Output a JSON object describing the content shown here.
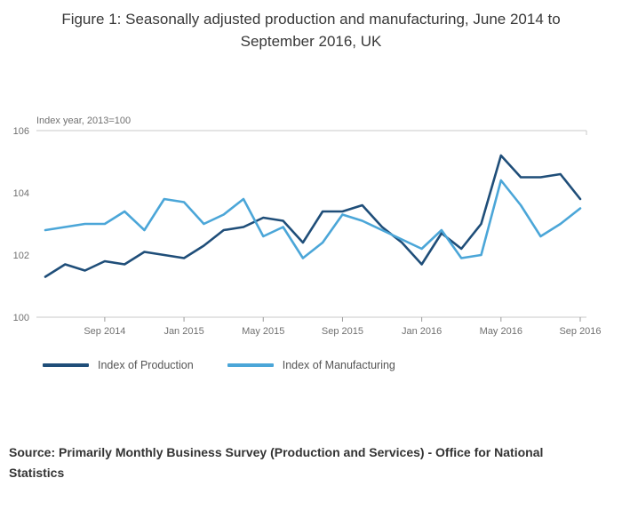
{
  "figure": {
    "title": "Figure 1: Seasonally adjusted production and manufacturing, June 2014 to September 2016, UK",
    "source": "Source: Primarily Monthly Business Survey (Production and Services) - Office for National Statistics"
  },
  "chart_data": {
    "type": "line",
    "title": "Figure 1: Seasonally adjusted production and manufacturing, June 2014 to September 2016, UK",
    "ylabel": "Index year, 2013=100",
    "xlabel": "",
    "ylim": [
      100,
      106
    ],
    "y_ticks": [
      100,
      102,
      104,
      106
    ],
    "grid": false,
    "legend_position": "bottom",
    "x": [
      "Jun 2014",
      "Jul 2014",
      "Aug 2014",
      "Sep 2014",
      "Oct 2014",
      "Nov 2014",
      "Dec 2014",
      "Jan 2015",
      "Feb 2015",
      "Mar 2015",
      "Apr 2015",
      "May 2015",
      "Jun 2015",
      "Jul 2015",
      "Aug 2015",
      "Sep 2015",
      "Oct 2015",
      "Nov 2015",
      "Dec 2015",
      "Jan 2016",
      "Feb 2016",
      "Mar 2016",
      "Apr 2016",
      "May 2016",
      "Jun 2016",
      "Jul 2016",
      "Aug 2016",
      "Sep 2016"
    ],
    "x_tick_labels": [
      "Sep 2014",
      "Jan 2015",
      "May 2015",
      "Sep 2015",
      "Jan 2016",
      "May 2016",
      "Sep 2016"
    ],
    "series": [
      {
        "name": "Index of Production",
        "color": "#1f4e79",
        "values": [
          101.3,
          101.7,
          101.5,
          101.8,
          101.7,
          102.1,
          102.0,
          101.9,
          102.3,
          102.8,
          102.9,
          103.2,
          103.1,
          102.4,
          103.4,
          103.4,
          103.6,
          102.9,
          102.4,
          101.7,
          102.7,
          102.2,
          103.0,
          105.2,
          104.5,
          104.5,
          104.6,
          103.8
        ]
      },
      {
        "name": "Index of Manufacturing",
        "color": "#4ba6d8",
        "values": [
          102.8,
          102.9,
          103.0,
          103.0,
          103.4,
          102.8,
          103.8,
          103.7,
          103.0,
          103.3,
          103.8,
          102.6,
          102.9,
          101.9,
          102.4,
          103.3,
          103.1,
          102.8,
          102.5,
          102.2,
          102.8,
          101.9,
          102.0,
          104.4,
          103.6,
          102.6,
          103.0,
          103.5
        ]
      }
    ],
    "axis_color": "#c9c9c9",
    "tick_color": "#9a9a9a",
    "label_color": "#707070"
  }
}
